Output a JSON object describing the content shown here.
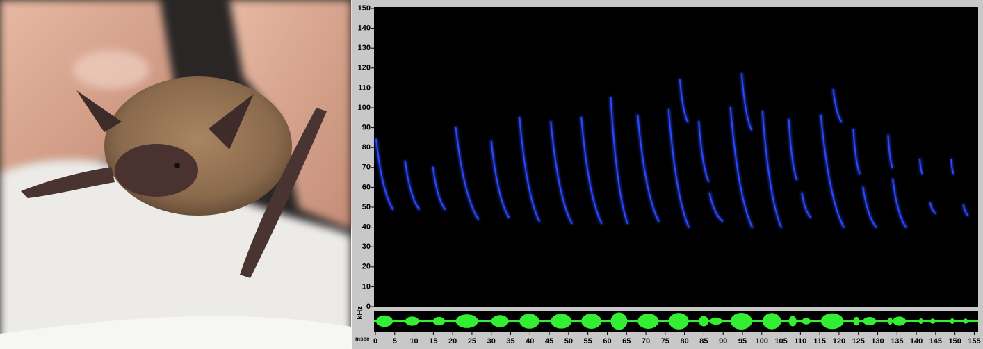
{
  "chart_data": {
    "type": "spectrogram",
    "ylabel": "kHz",
    "xlabel": "msec",
    "ylim": [
      0,
      150
    ],
    "yticks": [
      0,
      10,
      20,
      30,
      40,
      50,
      60,
      70,
      80,
      90,
      100,
      110,
      120,
      130,
      140,
      150
    ],
    "xlim": [
      0,
      156
    ],
    "xticks": [
      0,
      5,
      10,
      15,
      20,
      25,
      30,
      35,
      40,
      45,
      50,
      55,
      60,
      65,
      70,
      75,
      80,
      85,
      90,
      95,
      100,
      105,
      110,
      115,
      120,
      125,
      130,
      135,
      140,
      145,
      150,
      155
    ],
    "color": "#2a48ff",
    "waveform_color": "#33ee33",
    "calls": [
      {
        "t_start": 0.2,
        "t_end": 4.5,
        "f_high": 84,
        "f_low": 49
      },
      {
        "t_start": 7.7,
        "t_end": 11.3,
        "f_high": 73,
        "f_low": 49
      },
      {
        "t_start": 14.9,
        "t_end": 18,
        "f_high": 70,
        "f_low": 49
      },
      {
        "t_start": 20.8,
        "t_end": 26.6,
        "f_high": 90,
        "f_low": 44
      },
      {
        "t_start": 30,
        "t_end": 34.5,
        "f_high": 83,
        "f_low": 45
      },
      {
        "t_start": 37.3,
        "t_end": 42.4,
        "f_high": 95,
        "f_low": 43
      },
      {
        "t_start": 45.4,
        "t_end": 50.8,
        "f_high": 93,
        "f_low": 42
      },
      {
        "t_start": 53.3,
        "t_end": 58.5,
        "f_high": 95,
        "f_low": 42
      },
      {
        "t_start": 60.9,
        "t_end": 65.2,
        "f_high": 105,
        "f_low": 42
      },
      {
        "t_start": 67.9,
        "t_end": 73.3,
        "f_high": 96,
        "f_low": 43
      },
      {
        "t_start": 75.9,
        "t_end": 81.1,
        "f_high": 99,
        "f_low": 40
      },
      {
        "t_start": 78.8,
        "t_end": 80.8,
        "f_high": 114,
        "f_low": 93
      },
      {
        "t_start": 83.7,
        "t_end": 86.2,
        "f_high": 93,
        "f_low": 63
      },
      {
        "t_start": 86.5,
        "t_end": 89.8,
        "f_high": 57,
        "f_low": 43
      },
      {
        "t_start": 91.9,
        "t_end": 97.5,
        "f_high": 100,
        "f_low": 40
      },
      {
        "t_start": 94.8,
        "t_end": 97.3,
        "f_high": 117,
        "f_low": 89
      },
      {
        "t_start": 100.2,
        "t_end": 105,
        "f_high": 98,
        "f_low": 40
      },
      {
        "t_start": 107,
        "t_end": 109,
        "f_high": 94,
        "f_low": 64
      },
      {
        "t_start": 110.4,
        "t_end": 112.6,
        "f_high": 57,
        "f_low": 45
      },
      {
        "t_start": 115.3,
        "t_end": 121.2,
        "f_high": 96,
        "f_low": 40
      },
      {
        "t_start": 118.5,
        "t_end": 120.6,
        "f_high": 109,
        "f_low": 93
      },
      {
        "t_start": 123.7,
        "t_end": 125.3,
        "f_high": 89,
        "f_low": 67
      },
      {
        "t_start": 126.2,
        "t_end": 129.6,
        "f_high": 60,
        "f_low": 40
      },
      {
        "t_start": 132.7,
        "t_end": 133.8,
        "f_high": 86,
        "f_low": 70
      },
      {
        "t_start": 133.9,
        "t_end": 137.3,
        "f_high": 64,
        "f_low": 40
      },
      {
        "t_start": 140.9,
        "t_end": 141.5,
        "f_high": 74,
        "f_low": 67
      },
      {
        "t_start": 143.6,
        "t_end": 144.9,
        "f_high": 52,
        "f_low": 47
      },
      {
        "t_start": 149,
        "t_end": 149.6,
        "f_high": 74,
        "f_low": 67
      },
      {
        "t_start": 152.2,
        "t_end": 153.3,
        "f_high": 51,
        "f_low": 46
      }
    ]
  }
}
